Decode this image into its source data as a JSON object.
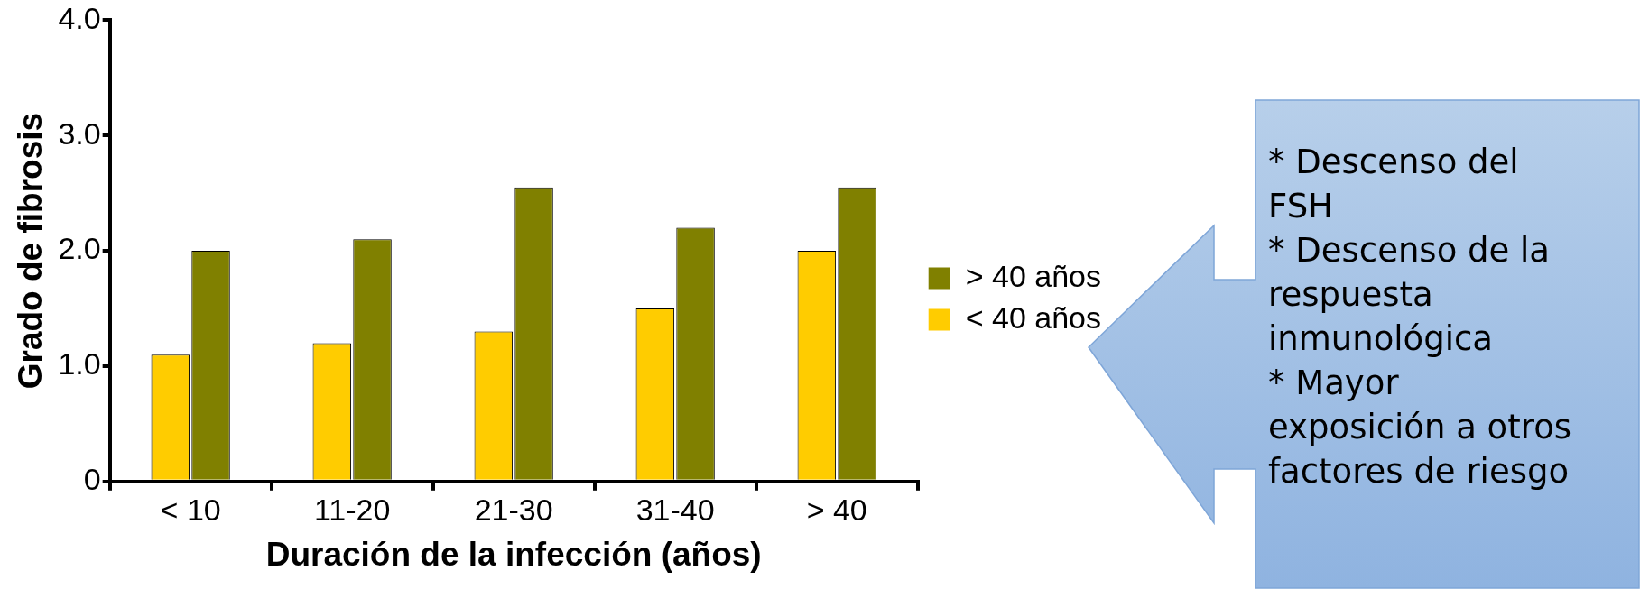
{
  "chart_data": {
    "type": "bar",
    "xlabel": "Duración de la infección (años)",
    "ylabel": "Grado de fibrosis",
    "categories": [
      "< 10",
      "11-20",
      "21-30",
      "31-40",
      "> 40"
    ],
    "series": [
      {
        "name": "< 40 años",
        "color": "#ffcc00",
        "values": [
          1.1,
          1.2,
          1.3,
          1.5,
          2.0
        ]
      },
      {
        "name": "> 40 años",
        "color": "#808000",
        "values": [
          2.0,
          2.1,
          2.55,
          2.2,
          2.55
        ]
      }
    ],
    "ylim": [
      0,
      4
    ],
    "yticks": [
      0,
      {
        "value": 1,
        "label": "1.0"
      },
      {
        "value": 2,
        "label": "2.0"
      },
      {
        "value": 3,
        "label": "3.0"
      },
      {
        "value": 4,
        "label": "4.0"
      }
    ],
    "grid": false,
    "legend": "right",
    "annotations": [
      "* Descenso del FSH",
      "* Descenso de la respuesta inmunológica",
      "* Mayor exposición a otros factores de riesgo"
    ]
  }
}
